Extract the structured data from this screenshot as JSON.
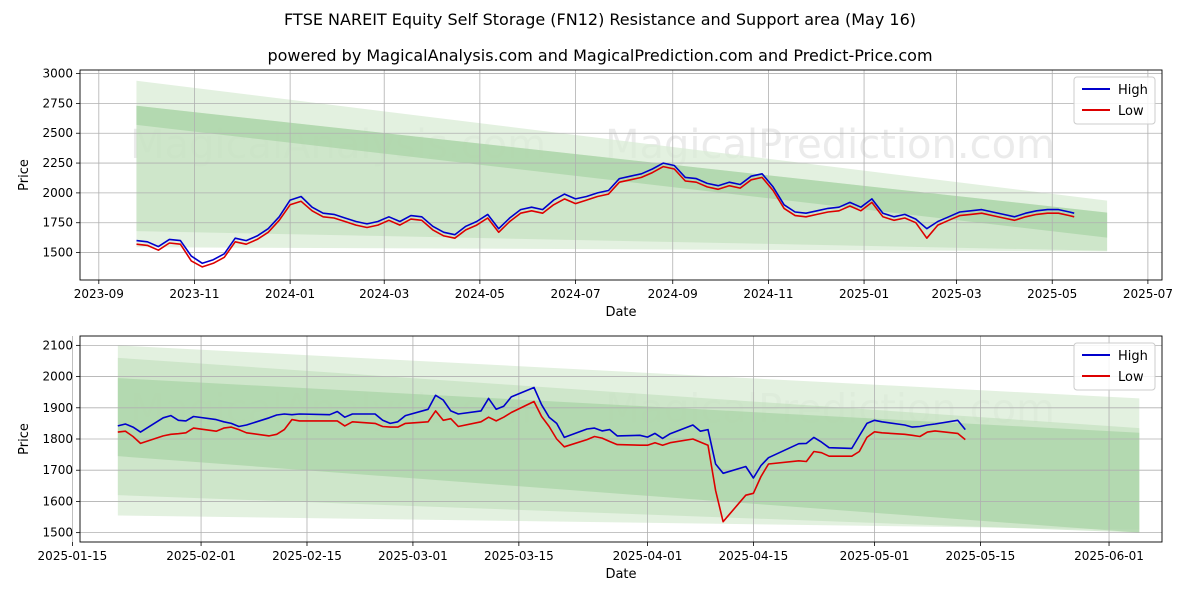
{
  "header": {
    "title": "FTSE NAREIT Equity Self Storage (FN12) Resistance and Support area (May 16)",
    "subtitle": "powered by MagicalAnalysis.com and MagicalPrediction.com and Predict-Price.com"
  },
  "watermarks": [
    "MagicalAnalysis.com",
    "MagicalPrediction.com"
  ],
  "colors": {
    "high": "#0000cc",
    "low": "#dd0000",
    "band_light": "#d9ecd6",
    "band_mid": "#bfe0bb",
    "band_dark": "#a2d19e",
    "grid": "#b0b0b0"
  },
  "chart_data": [
    {
      "type": "line",
      "xlabel": "Date",
      "ylabel": "Price",
      "xlim": [
        "2023-08-20",
        "2025-07-10"
      ],
      "ylim": [
        1270,
        3030
      ],
      "xticks": [
        "2023-09",
        "2023-11",
        "2024-01",
        "2024-03",
        "2024-05",
        "2024-07",
        "2024-09",
        "2024-11",
        "2025-01",
        "2025-03",
        "2025-05",
        "2025-07"
      ],
      "xtick_dates": [
        "2023-09-01",
        "2023-11-01",
        "2024-01-01",
        "2024-03-01",
        "2024-05-01",
        "2024-07-01",
        "2024-09-01",
        "2024-11-01",
        "2025-01-01",
        "2025-03-01",
        "2025-05-01",
        "2025-07-01"
      ],
      "yticks": [
        1500,
        1750,
        2000,
        2250,
        2500,
        2750,
        3000
      ],
      "legend": {
        "position": "top-right",
        "entries": [
          "High",
          "Low"
        ]
      },
      "bands": [
        {
          "shade": "light",
          "start": "2023-09-25",
          "end": "2025-06-05",
          "top": [
            2940,
            1935
          ],
          "bottom": [
            1545,
            1510
          ]
        },
        {
          "shade": "mid",
          "start": "2023-09-25",
          "end": "2025-06-05",
          "top": [
            2730,
            1835
          ],
          "bottom": [
            1680,
            1515
          ]
        },
        {
          "shade": "dark",
          "start": "2023-09-25",
          "end": "2025-06-05",
          "top": [
            2730,
            1835
          ],
          "bottom": [
            2570,
            1625
          ]
        }
      ],
      "dates": [
        "2023-09-25",
        "2023-10-02",
        "2023-10-09",
        "2023-10-16",
        "2023-10-23",
        "2023-10-30",
        "2023-11-06",
        "2023-11-13",
        "2023-11-20",
        "2023-11-27",
        "2023-12-04",
        "2023-12-11",
        "2023-12-18",
        "2023-12-25",
        "2024-01-01",
        "2024-01-08",
        "2024-01-15",
        "2024-01-22",
        "2024-01-29",
        "2024-02-05",
        "2024-02-12",
        "2024-02-19",
        "2024-02-26",
        "2024-03-04",
        "2024-03-11",
        "2024-03-18",
        "2024-03-25",
        "2024-04-01",
        "2024-04-08",
        "2024-04-15",
        "2024-04-22",
        "2024-04-29",
        "2024-05-06",
        "2024-05-13",
        "2024-05-20",
        "2024-05-27",
        "2024-06-03",
        "2024-06-10",
        "2024-06-17",
        "2024-06-24",
        "2024-07-01",
        "2024-07-08",
        "2024-07-15",
        "2024-07-22",
        "2024-07-29",
        "2024-08-05",
        "2024-08-12",
        "2024-08-19",
        "2024-08-26",
        "2024-09-02",
        "2024-09-09",
        "2024-09-16",
        "2024-09-23",
        "2024-09-30",
        "2024-10-07",
        "2024-10-14",
        "2024-10-21",
        "2024-10-28",
        "2024-11-04",
        "2024-11-11",
        "2024-11-18",
        "2024-11-25",
        "2024-12-02",
        "2024-12-09",
        "2024-12-16",
        "2024-12-23",
        "2024-12-30",
        "2025-01-06",
        "2025-01-13",
        "2025-01-20",
        "2025-01-27",
        "2025-02-03",
        "2025-02-10",
        "2025-02-17",
        "2025-02-24",
        "2025-03-03",
        "2025-03-10",
        "2025-03-17",
        "2025-03-24",
        "2025-03-31",
        "2025-04-07",
        "2025-04-14",
        "2025-04-21",
        "2025-04-28",
        "2025-05-05",
        "2025-05-12",
        "2025-05-15"
      ],
      "series": [
        {
          "name": "High",
          "values": [
            1600,
            1590,
            1550,
            1610,
            1600,
            1470,
            1410,
            1440,
            1490,
            1620,
            1600,
            1640,
            1700,
            1800,
            1940,
            1970,
            1880,
            1830,
            1820,
            1790,
            1760,
            1740,
            1760,
            1800,
            1760,
            1810,
            1800,
            1720,
            1670,
            1650,
            1720,
            1760,
            1820,
            1700,
            1790,
            1860,
            1880,
            1860,
            1940,
            1990,
            1950,
            1970,
            2000,
            2020,
            2120,
            2140,
            2160,
            2200,
            2250,
            2230,
            2130,
            2120,
            2080,
            2060,
            2090,
            2070,
            2140,
            2160,
            2050,
            1900,
            1840,
            1830,
            1850,
            1870,
            1880,
            1920,
            1880,
            1950,
            1830,
            1800,
            1820,
            1780,
            1700,
            1760,
            1800,
            1840,
            1850,
            1860,
            1840,
            1820,
            1800,
            1830,
            1850,
            1860,
            1860,
            1840,
            1830
          ]
        },
        {
          "name": "Low",
          "values": [
            1570,
            1560,
            1520,
            1580,
            1570,
            1430,
            1380,
            1410,
            1460,
            1590,
            1570,
            1610,
            1670,
            1770,
            1900,
            1930,
            1850,
            1800,
            1790,
            1760,
            1730,
            1710,
            1730,
            1770,
            1730,
            1780,
            1770,
            1690,
            1640,
            1620,
            1690,
            1730,
            1790,
            1670,
            1760,
            1830,
            1850,
            1830,
            1900,
            1950,
            1910,
            1940,
            1970,
            1990,
            2090,
            2110,
            2130,
            2170,
            2220,
            2200,
            2100,
            2090,
            2050,
            2030,
            2060,
            2040,
            2110,
            2130,
            2020,
            1870,
            1810,
            1800,
            1820,
            1840,
            1850,
            1890,
            1850,
            1920,
            1800,
            1770,
            1790,
            1750,
            1620,
            1730,
            1770,
            1810,
            1820,
            1830,
            1810,
            1790,
            1770,
            1800,
            1820,
            1830,
            1830,
            1810,
            1800
          ]
        }
      ]
    },
    {
      "type": "line",
      "xlabel": "Date",
      "ylabel": "Price",
      "xlim": [
        "2025-01-16",
        "2025-06-08"
      ],
      "ylim": [
        1470,
        2130
      ],
      "xticks": [
        "2025-01-15",
        "2025-02-01",
        "2025-02-15",
        "2025-03-01",
        "2025-03-15",
        "2025-04-01",
        "2025-04-15",
        "2025-05-01",
        "2025-05-15",
        "2025-06-01"
      ],
      "yticks": [
        1500,
        1600,
        1700,
        1800,
        1900,
        2000,
        2100
      ],
      "legend": {
        "position": "top-right",
        "entries": [
          "High",
          "Low"
        ]
      },
      "bands": [
        {
          "shade": "light",
          "start": "2025-01-21",
          "end": "2025-06-05",
          "top": [
            2100,
            1930
          ],
          "bottom": [
            1555,
            1510
          ]
        },
        {
          "shade": "mid",
          "start": "2025-01-21",
          "end": "2025-06-05",
          "top": [
            2060,
            1835
          ],
          "bottom": [
            1620,
            1500
          ]
        },
        {
          "shade": "dark",
          "start": "2025-01-21",
          "end": "2025-06-05",
          "top": [
            1995,
            1820
          ],
          "bottom": [
            1745,
            1500
          ]
        }
      ],
      "dates": [
        "2025-01-21",
        "2025-01-22",
        "2025-01-23",
        "2025-01-24",
        "2025-01-27",
        "2025-01-28",
        "2025-01-29",
        "2025-01-30",
        "2025-01-31",
        "2025-02-03",
        "2025-02-04",
        "2025-02-05",
        "2025-02-06",
        "2025-02-07",
        "2025-02-10",
        "2025-02-11",
        "2025-02-12",
        "2025-02-13",
        "2025-02-14",
        "2025-02-18",
        "2025-02-19",
        "2025-02-20",
        "2025-02-21",
        "2025-02-24",
        "2025-02-25",
        "2025-02-26",
        "2025-02-27",
        "2025-02-28",
        "2025-03-03",
        "2025-03-04",
        "2025-03-05",
        "2025-03-06",
        "2025-03-07",
        "2025-03-10",
        "2025-03-11",
        "2025-03-12",
        "2025-03-13",
        "2025-03-14",
        "2025-03-17",
        "2025-03-18",
        "2025-03-19",
        "2025-03-20",
        "2025-03-21",
        "2025-03-24",
        "2025-03-25",
        "2025-03-26",
        "2025-03-27",
        "2025-03-28",
        "2025-03-31",
        "2025-04-01",
        "2025-04-02",
        "2025-04-03",
        "2025-04-04",
        "2025-04-07",
        "2025-04-08",
        "2025-04-09",
        "2025-04-10",
        "2025-04-11",
        "2025-04-14",
        "2025-04-15",
        "2025-04-16",
        "2025-04-17",
        "2025-04-21",
        "2025-04-22",
        "2025-04-23",
        "2025-04-24",
        "2025-04-25",
        "2025-04-28",
        "2025-04-29",
        "2025-04-30",
        "2025-05-01",
        "2025-05-02",
        "2025-05-05",
        "2025-05-06",
        "2025-05-07",
        "2025-05-08",
        "2025-05-09",
        "2025-05-12",
        "2025-05-13"
      ],
      "series": [
        {
          "name": "High",
          "values": [
            1842,
            1848,
            1838,
            1822,
            1868,
            1875,
            1860,
            1858,
            1872,
            1862,
            1855,
            1850,
            1840,
            1845,
            1868,
            1877,
            1880,
            1878,
            1880,
            1878,
            1888,
            1870,
            1880,
            1880,
            1860,
            1850,
            1855,
            1875,
            1895,
            1940,
            1925,
            1890,
            1880,
            1890,
            1930,
            1895,
            1905,
            1935,
            1965,
            1910,
            1870,
            1850,
            1805,
            1832,
            1835,
            1826,
            1830,
            1810,
            1812,
            1806,
            1818,
            1802,
            1817,
            1845,
            1825,
            1830,
            1720,
            1690,
            1712,
            1675,
            1715,
            1740,
            1785,
            1786,
            1805,
            1790,
            1772,
            1770,
            1810,
            1850,
            1860,
            1855,
            1845,
            1838,
            1840,
            1845,
            1848,
            1860,
            1830
          ]
        },
        {
          "name": "Low",
          "values": [
            1822,
            1825,
            1808,
            1786,
            1810,
            1815,
            1817,
            1820,
            1835,
            1825,
            1835,
            1838,
            1830,
            1820,
            1810,
            1815,
            1830,
            1862,
            1858,
            1858,
            1858,
            1842,
            1855,
            1850,
            1840,
            1838,
            1838,
            1850,
            1855,
            1890,
            1860,
            1865,
            1840,
            1855,
            1870,
            1858,
            1870,
            1885,
            1920,
            1872,
            1840,
            1800,
            1775,
            1798,
            1808,
            1803,
            1792,
            1782,
            1780,
            1780,
            1788,
            1780,
            1788,
            1800,
            1790,
            1780,
            1635,
            1535,
            1620,
            1626,
            1680,
            1720,
            1730,
            1728,
            1760,
            1756,
            1745,
            1745,
            1760,
            1805,
            1823,
            1820,
            1815,
            1812,
            1808,
            1822,
            1826,
            1818,
            1798
          ]
        }
      ]
    }
  ]
}
